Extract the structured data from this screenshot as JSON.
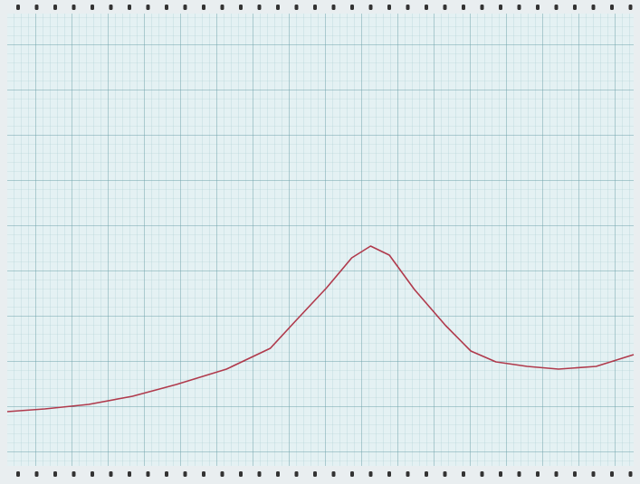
{
  "chart_data": {
    "type": "line",
    "x": [
      0,
      6,
      13,
      20,
      27,
      35,
      42,
      46,
      51,
      55,
      58,
      61,
      65,
      70,
      74,
      78,
      83,
      88,
      94,
      100
    ],
    "series": [
      {
        "color": "#b03a4c",
        "values": [
          12,
          12.6,
          13.6,
          15.4,
          18,
          21.4,
          26,
          32,
          39.4,
          46,
          48.6,
          46.6,
          39,
          31,
          25.4,
          23,
          22,
          21.4,
          22,
          24.6
        ]
      }
    ],
    "xlim": [
      0,
      100
    ],
    "ylim": [
      0,
      100
    ]
  }
}
